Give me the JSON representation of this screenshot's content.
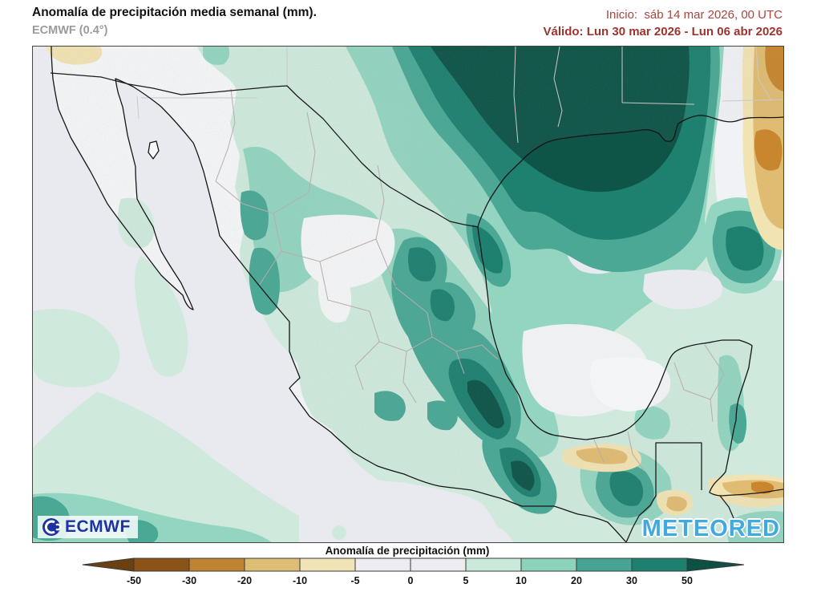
{
  "header": {
    "title": "Anomalía de precipitación media semanal (mm).",
    "model": "ECMWF (0.4°)",
    "init_label": "Inicio:  sáb 14 mar 2026, 00 UTC",
    "valid_label": "Válido: Lun 30 mar 2026 - Lun 06 abr 2026"
  },
  "map": {
    "ecmwf_logo_text": "ECMWF",
    "meteored_logo_text": "METEORED"
  },
  "legend": {
    "title": "Anomalía de precipitación (mm)",
    "tick_labels": [
      "-50",
      "-30",
      "-20",
      "-10",
      "-5",
      "0",
      "5",
      "10",
      "20",
      "30",
      "50"
    ],
    "segment_colors": [
      "#8a5317",
      "#c08233",
      "#ddbe76",
      "#f0e3b5",
      "#ececf1",
      "#ececf1",
      "#c9e9da",
      "#8fd2bb",
      "#47a492",
      "#1d7f6e"
    ],
    "arrow_left_color": "#6a4112",
    "arrow_right_color": "#0d5144",
    "outline_color": "#3a3a3a"
  },
  "colors": {
    "ocean": "#e9eaef",
    "land": "#f6f7f8",
    "anom_5_10": "#cfeadd",
    "anom_10_20": "#93d5c0",
    "anom_20_30": "#4aa895",
    "anom_30_50": "#1e8170",
    "anom_gt_50": "#0e5447",
    "anom_neg_cream": "#f2e3b3",
    "anom_neg_tan": "#e0bc72",
    "anom_neg_orange": "#c8862e",
    "header_red": "#9c332e",
    "logo_blue": "#1d33a2",
    "meteored_blue": "#3fa9e0"
  }
}
